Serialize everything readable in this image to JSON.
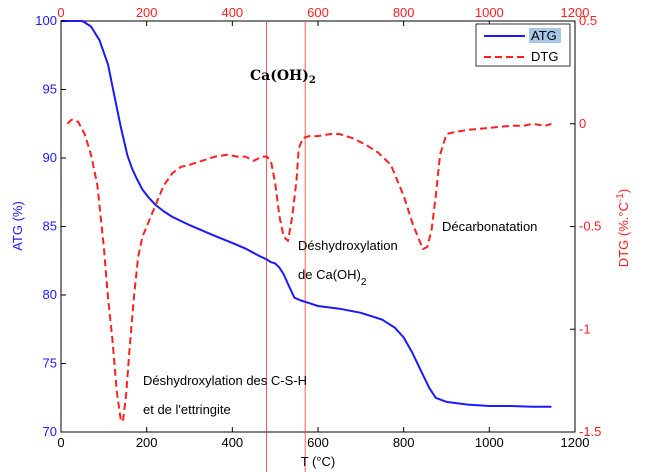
{
  "chart_data": {
    "type": "line",
    "xlabel": "T (°C)",
    "x_top_ticks": [
      "0",
      "200",
      "400",
      "600",
      "800",
      "1000",
      "1200"
    ],
    "x_bottom_ticks": [
      "0",
      "200",
      "400",
      "600",
      "800",
      "1000",
      "1200"
    ],
    "xlim": [
      0,
      1200
    ],
    "y_left": {
      "label": "ATG (%)",
      "lim": [
        70,
        100
      ],
      "ticks": [
        "70",
        "75",
        "80",
        "85",
        "90",
        "95",
        "100"
      ],
      "color": "#1a1aff"
    },
    "y_right": {
      "label_main": "DTG (%.°C",
      "label_sup": "-1",
      "label_end": ")",
      "lim": [
        -1.5,
        0.5
      ],
      "ticks": [
        "-1.5",
        "-1",
        "-0.5",
        "0",
        "0.5"
      ],
      "color": "#ff2020"
    },
    "series": [
      {
        "name": "ATG",
        "axis": "left",
        "style": "solid",
        "color": "#1a1aff",
        "x": [
          0,
          30,
          50,
          70,
          90,
          110,
          125,
          140,
          155,
          165,
          175,
          190,
          205,
          220,
          240,
          260,
          280,
          300,
          330,
          360,
          400,
          430,
          460,
          480,
          490,
          500,
          510,
          520,
          530,
          545,
          560,
          580,
          600,
          650,
          700,
          750,
          780,
          800,
          820,
          840,
          860,
          875,
          900,
          950,
          1000,
          1050,
          1100,
          1145
        ],
        "y": [
          100,
          100,
          100,
          99.6,
          98.6,
          96.8,
          94.5,
          92.2,
          90.2,
          89.3,
          88.6,
          87.7,
          87.1,
          86.6,
          86.1,
          85.7,
          85.4,
          85.1,
          84.7,
          84.3,
          83.8,
          83.4,
          82.9,
          82.6,
          82.4,
          82.3,
          82.0,
          81.5,
          80.8,
          79.8,
          79.6,
          79.4,
          79.2,
          79.0,
          78.7,
          78.2,
          77.6,
          76.9,
          75.8,
          74.5,
          73.2,
          72.5,
          72.2,
          72.0,
          71.9,
          71.9,
          71.85,
          71.85
        ]
      },
      {
        "name": "DTG",
        "axis": "right",
        "style": "dashed",
        "color": "#ff2020",
        "x": [
          15,
          25,
          40,
          55,
          70,
          85,
          100,
          110,
          120,
          130,
          140,
          145,
          152,
          160,
          170,
          180,
          190,
          200,
          220,
          240,
          260,
          280,
          300,
          330,
          360,
          390,
          410,
          430,
          450,
          470,
          480,
          490,
          500,
          510,
          520,
          530,
          540,
          550,
          555,
          565,
          580,
          600,
          630,
          650,
          680,
          710,
          740,
          770,
          800,
          820,
          835,
          845,
          855,
          865,
          875,
          885,
          900,
          920,
          950,
          1000,
          1050,
          1080,
          1100,
          1130,
          1145
        ],
        "y": [
          0.0,
          0.02,
          0.01,
          -0.05,
          -0.15,
          -0.3,
          -0.6,
          -0.85,
          -1.05,
          -1.3,
          -1.45,
          -1.44,
          -1.32,
          -1.1,
          -0.85,
          -0.65,
          -0.55,
          -0.5,
          -0.4,
          -0.3,
          -0.24,
          -0.21,
          -0.2,
          -0.18,
          -0.16,
          -0.15,
          -0.16,
          -0.16,
          -0.18,
          -0.16,
          -0.16,
          -0.18,
          -0.29,
          -0.45,
          -0.55,
          -0.57,
          -0.45,
          -0.27,
          -0.12,
          -0.07,
          -0.06,
          -0.06,
          -0.05,
          -0.05,
          -0.07,
          -0.1,
          -0.14,
          -0.2,
          -0.35,
          -0.48,
          -0.56,
          -0.61,
          -0.6,
          -0.52,
          -0.35,
          -0.15,
          -0.05,
          -0.04,
          -0.03,
          -0.02,
          -0.01,
          -0.01,
          0.0,
          -0.01,
          0.0
        ]
      }
    ],
    "vlines": [
      480,
      570
    ],
    "annotations": {
      "ca_label": "Ca(OH)",
      "ca_sub": "2",
      "deshydrox_ca_line1": "Déshydroxylation",
      "deshydrox_ca_line2": "de Ca(OH)",
      "deshydrox_ca_sub": "2",
      "decarbonatation": "Décarbonatation",
      "csh_line1": "Déshydroxylation des C-S-H",
      "csh_line2": "et de l'ettringite"
    },
    "legend": {
      "placement": "top-right"
    }
  }
}
